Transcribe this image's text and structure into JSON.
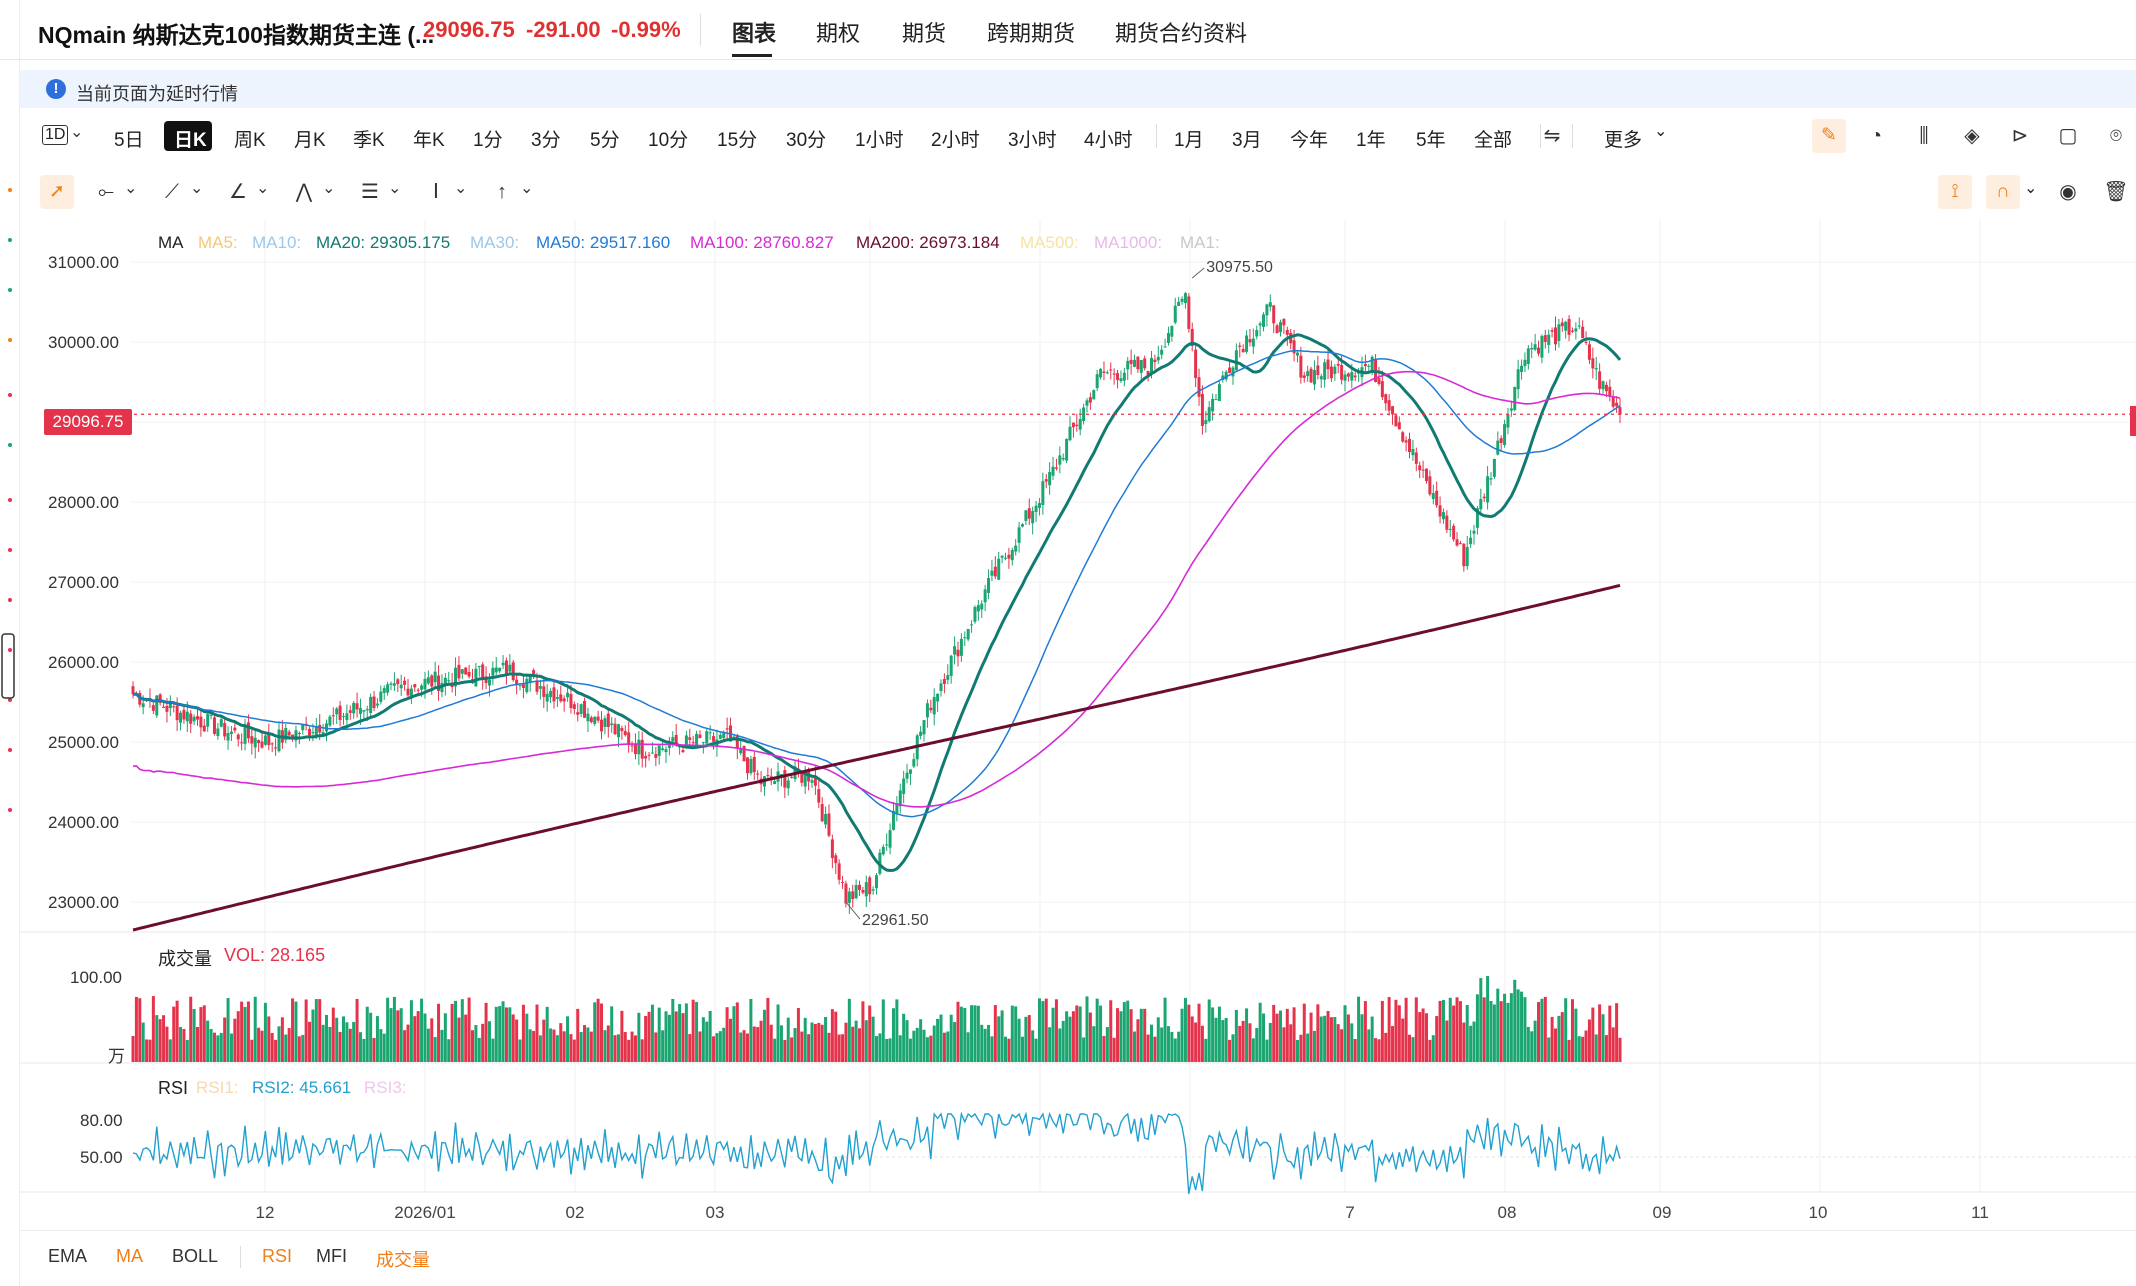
{
  "header": {
    "symbol": "NQmain 纳斯达克100指数期货主连 (...",
    "price": "29096.75",
    "change": "-291.00",
    "change_pct": "-0.99%",
    "tabs": [
      "图表",
      "期权",
      "期货",
      "跨期期货",
      "期货合约资料"
    ],
    "active_tab": "图表"
  },
  "notice": {
    "text": "当前页面为延时行情",
    "icon": "info-icon"
  },
  "toolbar": {
    "period_picker": "1D",
    "timeframes": [
      "5日",
      "日K",
      "周K",
      "月K",
      "季K",
      "年K",
      "1分",
      "3分",
      "5分",
      "10分",
      "15分",
      "30分",
      "1小时",
      "2小时",
      "3小时",
      "4小时",
      "1月",
      "3月",
      "今年",
      "1年",
      "5年",
      "全部"
    ],
    "active_timeframe": "日K",
    "more_label": "更多",
    "right_icons": [
      "pen-icon",
      "gauge-icon",
      "candles-icon",
      "layers-icon",
      "replay-icon",
      "square-icon",
      "camera-icon"
    ]
  },
  "drawing_toolbar": {
    "icons": [
      "cursor-icon",
      "line-tool-icon",
      "brush-icon",
      "angle-icon",
      "pattern-icon",
      "text-format-icon",
      "text-cursor-icon",
      "arrow-up-icon"
    ],
    "right_icons": [
      "pin-draw-icon",
      "magnet-icon",
      "eye-icon",
      "trash-icon"
    ]
  },
  "ma_legend": [
    {
      "label": "MA",
      "color": "#222"
    },
    {
      "label": "MA5:",
      "color": "#f5c77a"
    },
    {
      "label": "MA10:",
      "color": "#9cc8ea"
    },
    {
      "label": "MA20: 29305.175",
      "color": "#117a72"
    },
    {
      "label": "MA30:",
      "color": "#9cc8ea"
    },
    {
      "label": "MA50: 29517.160",
      "color": "#1f7bd6"
    },
    {
      "label": "MA100: 28760.827",
      "color": "#d62ad6"
    },
    {
      "label": "MA200: 26973.184",
      "color": "#6b0d2f"
    },
    {
      "label": "MA500:",
      "color": "#f7e3a1"
    },
    {
      "label": "MA1000:",
      "color": "#e7b9ea"
    },
    {
      "label": "MA1:",
      "color": "#c7c7c7"
    }
  ],
  "price_axis": [
    "31000.00",
    "30000.00",
    "28000.00",
    "27000.00",
    "26000.00",
    "25000.00",
    "24000.00",
    "23000.00"
  ],
  "last_price_tag": "29096.75",
  "annotations": {
    "high": "30975.50",
    "low": "22961.50"
  },
  "volume": {
    "title": "成交量",
    "vol_label": "VOL: 28.165",
    "axis_top": "100.00",
    "unit": "万"
  },
  "rsi": {
    "title": "RSI",
    "rsi1": "RSI1:",
    "rsi2": "RSI2: 45.661",
    "rsi3": "RSI3:",
    "axis": [
      "80.00",
      "50.00"
    ]
  },
  "time_axis": [
    "12",
    "2026/01",
    "02",
    "03",
    "7",
    "08",
    "09",
    "10",
    "11"
  ],
  "indicators": [
    "EMA",
    "MA",
    "BOLL",
    "RSI",
    "MFI",
    "成交量"
  ],
  "active_indicators": [
    "MA",
    "RSI",
    "成交量"
  ],
  "colors": {
    "up": "#1aa571",
    "down": "#e5334b",
    "accent": "#f07f18"
  },
  "chart_data": {
    "type": "candlestick",
    "y_range": [
      22800,
      31300
    ],
    "key_points": [
      {
        "x": "start",
        "close": 25600
      },
      {
        "x": "12",
        "close": 25050
      },
      {
        "x": "2026/01",
        "close": 25700
      },
      {
        "x": "02",
        "close": 25500
      },
      {
        "x": "03",
        "close": 24950
      },
      {
        "x": "low",
        "close": 22961.5
      },
      {
        "x": "recovery",
        "close": 25600
      },
      {
        "x": "rally",
        "close": 29500
      },
      {
        "x": "high",
        "close": 30975.5
      },
      {
        "x": "pullback",
        "close": 27200
      },
      {
        "x": "08",
        "close": 29800
      },
      {
        "x": "last",
        "close": 29096.75
      }
    ]
  }
}
